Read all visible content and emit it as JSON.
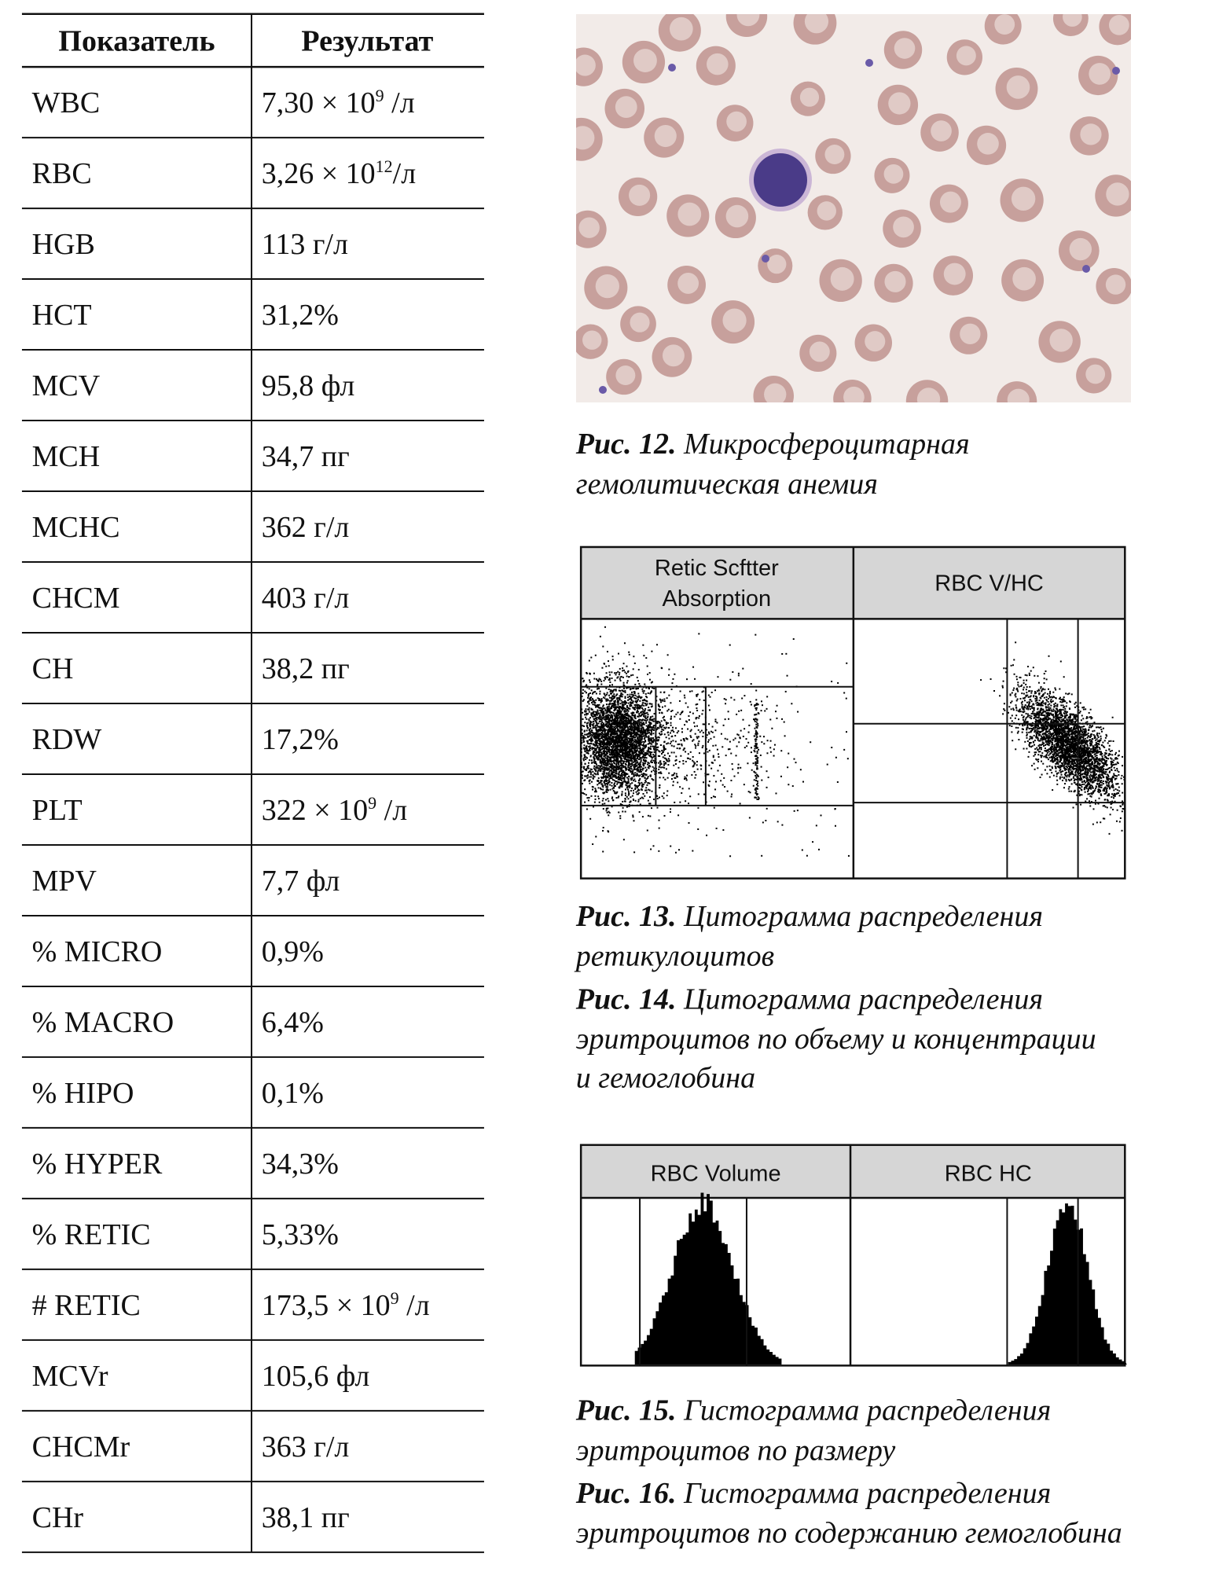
{
  "table": {
    "header": [
      "Показатель",
      "Результат"
    ],
    "rows": [
      {
        "name": "WBC",
        "value": "7,30 × 10",
        "sup": "9",
        "unit": " /л"
      },
      {
        "name": "RBC",
        "value": "3,26 × 10",
        "sup": "12",
        "unit": "/л"
      },
      {
        "name": "HGB",
        "value": "113 г/л"
      },
      {
        "name": "HCT",
        "value": "31,2%"
      },
      {
        "name": "MCV",
        "value": "95,8 фл"
      },
      {
        "name": "MCH",
        "value": "34,7 пг"
      },
      {
        "name": "MCHC",
        "value": "362 г/л"
      },
      {
        "name": "CHCM",
        "value": "403 г/л"
      },
      {
        "name": "CH",
        "value": "38,2 пг"
      },
      {
        "name": "RDW",
        "value": "17,2%"
      },
      {
        "name": "PLT",
        "value": "322 × 10",
        "sup": "9",
        "unit": " /л"
      },
      {
        "name": "MPV",
        "value": "7,7 фл"
      },
      {
        "name": "% MICRO",
        "value": "0,9%"
      },
      {
        "name": "% MACRO",
        "value": "6,4%"
      },
      {
        "name": "% HIPO",
        "value": "0,1%"
      },
      {
        "name": "% HYPER",
        "value": "34,3%"
      },
      {
        "name": "% RETIC",
        "value": "5,33%"
      },
      {
        "name": "# RETIC",
        "value": "173,5 × 10",
        "sup": "9",
        "unit": " /л"
      },
      {
        "name": "MCVr",
        "value": "105,6 фл"
      },
      {
        "name": "CHCMr",
        "value": "363 г/л"
      },
      {
        "name": "CHr",
        "value": "38,1 пг"
      }
    ]
  },
  "cytogram": {
    "panels": [
      {
        "lines": [
          "Retic Scftter",
          "Absorption"
        ]
      },
      {
        "lines": [
          "RBC V/HC"
        ]
      }
    ]
  },
  "histogram": {
    "panels": [
      "RBC Volume",
      "RBC HC"
    ]
  },
  "captions": [
    {
      "label": "Рис. 12.",
      "lines": [
        "Микросфероцитарная",
        "гемолитическая анемия"
      ]
    },
    {
      "label": "Рис. 13.",
      "lines": [
        "Цитограмма распределения",
        "ретикулоцитов"
      ]
    },
    {
      "label": "Рис. 14.",
      "lines": [
        "Цитограмма распределения",
        "эритроцитов по объему и концентрации",
        "и гемоглобина"
      ]
    },
    {
      "label": "Рис. 15.",
      "lines": [
        "Гистограмма распределения",
        "эритроцитов по размеру"
      ]
    },
    {
      "label": "Рис. 16.",
      "lines": [
        "Гистограмма распределения",
        "эритроцитов по содержанию гемоглобина"
      ]
    }
  ]
}
